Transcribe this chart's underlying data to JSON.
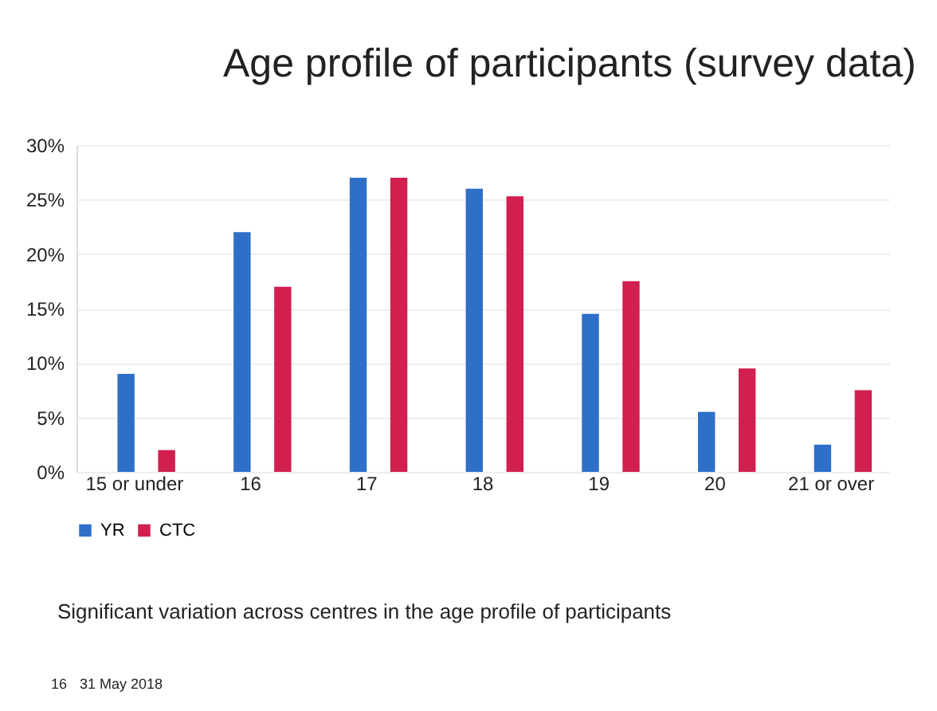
{
  "chart_data": {
    "type": "bar",
    "title": "Age profile of participants (survey data)",
    "categories": [
      "15 or under",
      "16",
      "17",
      "18",
      "19",
      "20",
      "21 or over"
    ],
    "series": [
      {
        "name": "YR",
        "color": "#2e6fc8",
        "values": [
          9,
          22,
          27,
          26,
          14.5,
          5.5,
          2.5
        ]
      },
      {
        "name": "CTC",
        "color": "#d11f4f",
        "values": [
          2,
          17,
          27,
          25.3,
          17.5,
          9.5,
          7.5
        ]
      }
    ],
    "ylim": [
      0,
      30
    ],
    "yticks": [
      {
        "value": 0,
        "label": "0%"
      },
      {
        "value": 5,
        "label": "5%"
      },
      {
        "value": 10,
        "label": "10%"
      },
      {
        "value": 15,
        "label": "15%"
      },
      {
        "value": 20,
        "label": "20%"
      },
      {
        "value": 25,
        "label": "25%"
      },
      {
        "value": 30,
        "label": "30%"
      }
    ],
    "grid": "y",
    "legend": "bottom",
    "annotations": [
      "Significant variation across centres in the age profile of participants",
      "16",
      "31 May 2018"
    ]
  }
}
